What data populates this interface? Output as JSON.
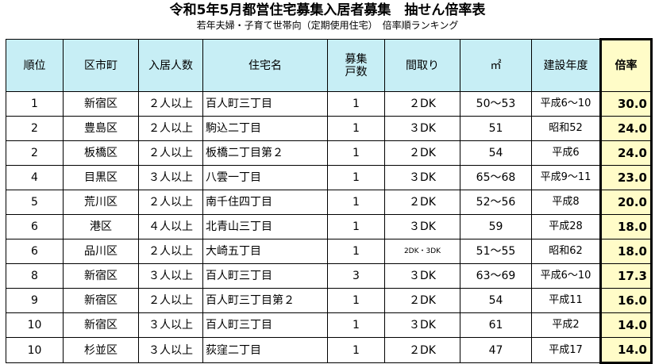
{
  "title": "令和5年5月都営住宅募集入居者募集　抽せん倍率表",
  "subtitle": "若年夫婦・子育て世帯向（定期使用住宅）　倍率順ランキング",
  "headers": {
    "rank": "順位",
    "ward": "区市町",
    "occupants": "入居人数",
    "name": "住宅名",
    "units_line1": "募集",
    "units_line2": "戸数",
    "layout": "間取り",
    "area": "㎡",
    "year": "建設年度",
    "rate": "倍率"
  },
  "rows": [
    {
      "rank": "1",
      "ward": "新宿区",
      "occupants": "２人以上",
      "name": "百人町三丁目",
      "units": "1",
      "layout": "２DK",
      "area": "50～53",
      "year": "平成6～10",
      "rate": "30.0"
    },
    {
      "rank": "2",
      "ward": "豊島区",
      "occupants": "２人以上",
      "name": "駒込二丁目",
      "units": "1",
      "layout": "３DK",
      "area": "51",
      "year": "昭和52",
      "rate": "24.0"
    },
    {
      "rank": "2",
      "ward": "板橋区",
      "occupants": "２人以上",
      "name": "板橋二丁目第２",
      "units": "1",
      "layout": "２DK",
      "area": "54",
      "year": "平成6",
      "rate": "24.0"
    },
    {
      "rank": "4",
      "ward": "目黒区",
      "occupants": "３人以上",
      "name": "八雲一丁目",
      "units": "1",
      "layout": "３DK",
      "area": "65～68",
      "year": "平成9～11",
      "rate": "23.0"
    },
    {
      "rank": "5",
      "ward": "荒川区",
      "occupants": "２人以上",
      "name": "南千住四丁目",
      "units": "1",
      "layout": "２DK",
      "area": "52～56",
      "year": "平成8",
      "rate": "20.0"
    },
    {
      "rank": "6",
      "ward": "港区",
      "occupants": "４人以上",
      "name": "北青山三丁目",
      "units": "1",
      "layout": "３DK",
      "area": "59",
      "year": "平成28",
      "rate": "18.0"
    },
    {
      "rank": "6",
      "ward": "品川区",
      "occupants": "２人以上",
      "name": "大崎五丁目",
      "units": "1",
      "layout": "2DK・3DK",
      "area": "51～55",
      "year": "昭和62",
      "rate": "18.0"
    },
    {
      "rank": "8",
      "ward": "新宿区",
      "occupants": "３人以上",
      "name": "百人町三丁目",
      "units": "3",
      "layout": "３DK",
      "area": "63～69",
      "year": "平成6～10",
      "rate": "17.3"
    },
    {
      "rank": "9",
      "ward": "新宿区",
      "occupants": "２人以上",
      "name": "百人町三丁目第２",
      "units": "1",
      "layout": "２DK",
      "area": "54",
      "year": "平成11",
      "rate": "16.0"
    },
    {
      "rank": "10",
      "ward": "新宿区",
      "occupants": "３人以上",
      "name": "百人町三丁目",
      "units": "1",
      "layout": "３DK",
      "area": "61",
      "year": "平成2",
      "rate": "14.0"
    },
    {
      "rank": "10",
      "ward": "杉並区",
      "occupants": "３人以上",
      "name": "荻窪二丁目",
      "units": "1",
      "layout": "２DK",
      "area": "47",
      "year": "平成17",
      "rate": "14.0"
    }
  ],
  "colors": {
    "header_bg": "#c7eef5",
    "rate_bg": "#fffcc8",
    "border": "#000000"
  }
}
